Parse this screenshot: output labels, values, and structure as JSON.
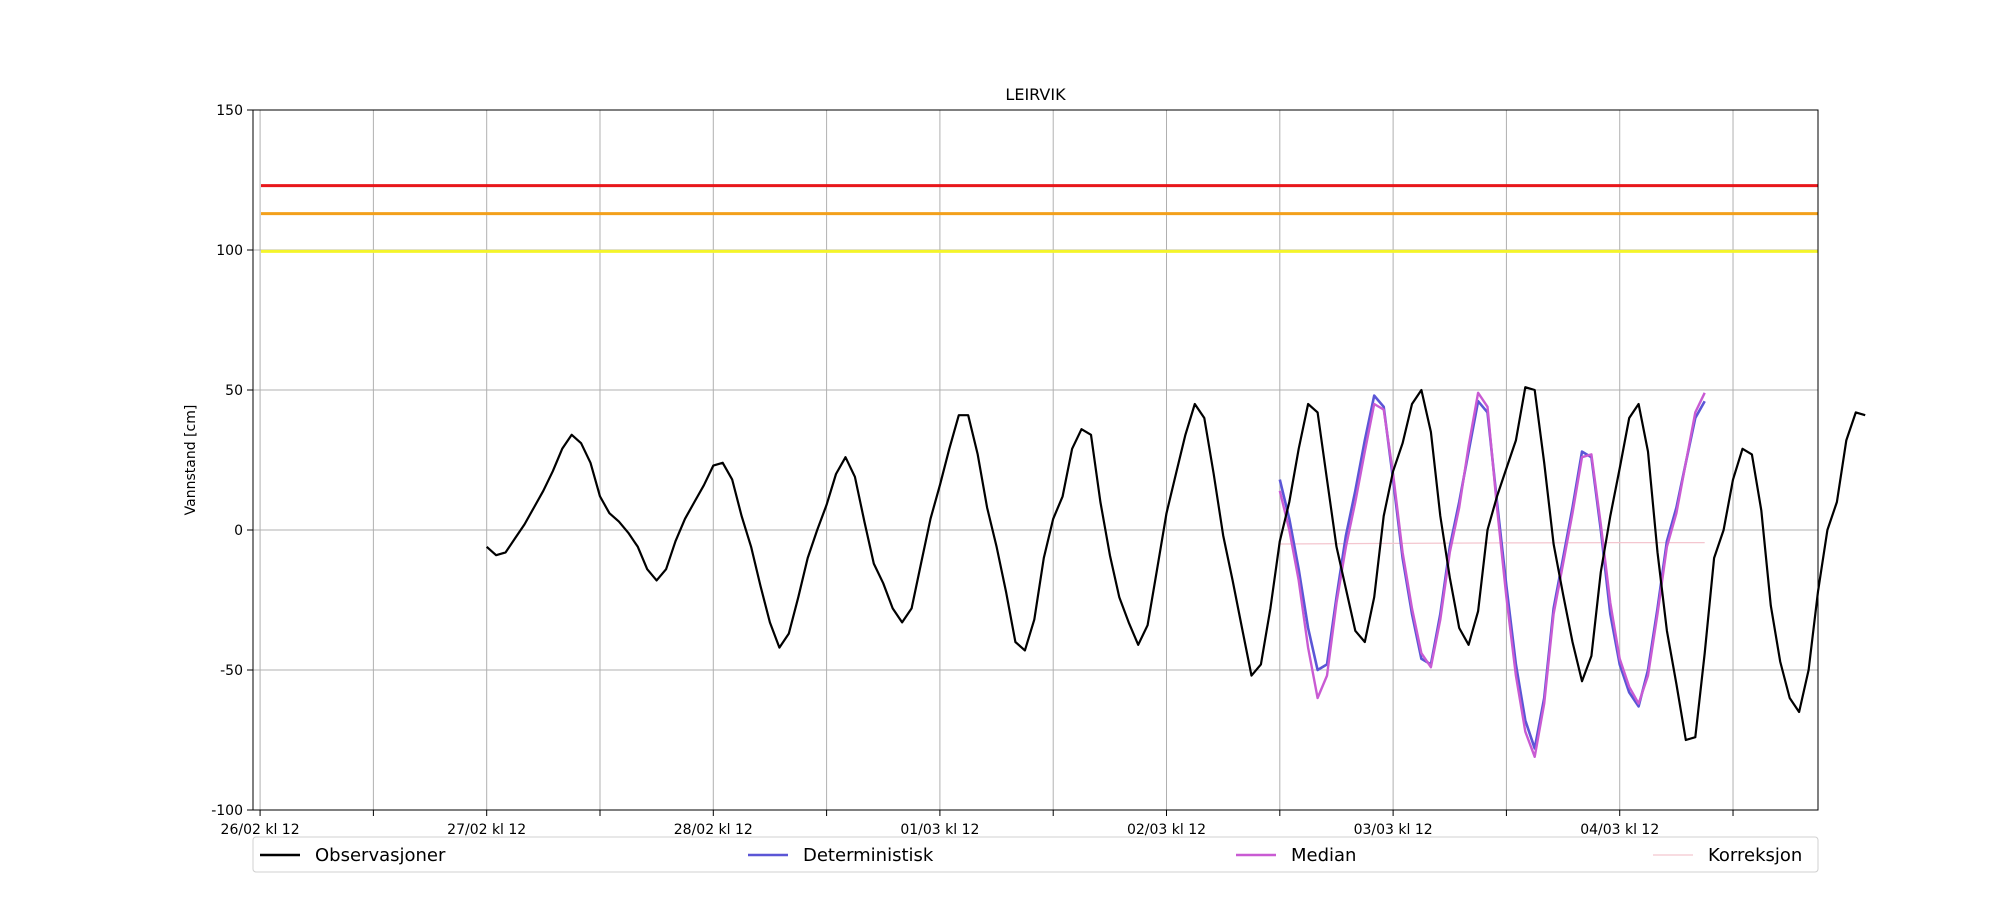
{
  "chart_data": {
    "type": "line",
    "title": "LEIRVIK",
    "xlabel": "",
    "ylabel": "Vannstand [cm]",
    "ylim": [
      -100,
      150
    ],
    "xlim": [
      "2025-02-26T11:15",
      "2025-03-05T09:00"
    ],
    "yticks": [
      -100,
      -50,
      0,
      50,
      100,
      150
    ],
    "xtick_labels": [
      {
        "t": "2025-02-26T12:00",
        "label": "26/02 kl 12"
      },
      {
        "t": "2025-02-27T12:00",
        "label": "27/02 kl 12"
      },
      {
        "t": "2025-02-28T12:00",
        "label": "28/02 kl 12"
      },
      {
        "t": "2025-03-01T12:00",
        "label": "01/03 kl 12"
      },
      {
        "t": "2025-03-02T12:00",
        "label": "02/03 kl 12"
      },
      {
        "t": "2025-03-03T12:00",
        "label": "03/03 kl 12"
      },
      {
        "t": "2025-03-04T12:00",
        "label": "04/03 kl 12"
      }
    ],
    "grid": true,
    "legend_position": "bottom",
    "thresholds": [
      {
        "value": 123,
        "color": "#e8171b"
      },
      {
        "value": 113,
        "color": "#f3a01b"
      },
      {
        "value": 99.5,
        "color": "#f4f42b"
      }
    ],
    "series": [
      {
        "name": "Observasjoner",
        "color": "#000000",
        "points": [
          [
            "2025-02-27T12:00",
            -6
          ],
          [
            "2025-02-27T13:00",
            -9
          ],
          [
            "2025-02-27T14:00",
            -8
          ],
          [
            "2025-02-27T15:00",
            -3
          ],
          [
            "2025-02-27T16:00",
            2
          ],
          [
            "2025-02-27T17:00",
            8
          ],
          [
            "2025-02-27T18:00",
            14
          ],
          [
            "2025-02-27T19:00",
            21
          ],
          [
            "2025-02-27T20:00",
            29
          ],
          [
            "2025-02-27T21:00",
            34
          ],
          [
            "2025-02-27T22:00",
            31
          ],
          [
            "2025-02-27T23:00",
            24
          ],
          [
            "2025-02-28T00:00",
            12
          ],
          [
            "2025-02-28T01:00",
            6
          ],
          [
            "2025-02-28T02:00",
            3
          ],
          [
            "2025-02-28T03:00",
            -1
          ],
          [
            "2025-02-28T04:00",
            -6
          ],
          [
            "2025-02-28T05:00",
            -14
          ],
          [
            "2025-02-28T06:00",
            -18
          ],
          [
            "2025-02-28T07:00",
            -14
          ],
          [
            "2025-02-28T08:00",
            -4
          ],
          [
            "2025-02-28T09:00",
            4
          ],
          [
            "2025-02-28T10:00",
            10
          ],
          [
            "2025-02-28T11:00",
            16
          ],
          [
            "2025-02-28T12:00",
            23
          ],
          [
            "2025-02-28T13:00",
            24
          ],
          [
            "2025-02-28T14:00",
            18
          ],
          [
            "2025-02-28T15:00",
            5
          ],
          [
            "2025-02-28T16:00",
            -6
          ],
          [
            "2025-02-28T17:00",
            -20
          ],
          [
            "2025-02-28T18:00",
            -33
          ],
          [
            "2025-02-28T19:00",
            -42
          ],
          [
            "2025-02-28T20:00",
            -37
          ],
          [
            "2025-02-28T21:00",
            -24
          ],
          [
            "2025-02-28T22:00",
            -10
          ],
          [
            "2025-02-28T23:00",
            0
          ],
          [
            "2025-03-01T00:00",
            9
          ],
          [
            "2025-03-01T01:00",
            20
          ],
          [
            "2025-03-01T02:00",
            26
          ],
          [
            "2025-03-01T03:00",
            19
          ],
          [
            "2025-03-01T04:00",
            3
          ],
          [
            "2025-03-01T05:00",
            -12
          ],
          [
            "2025-03-01T06:00",
            -19
          ],
          [
            "2025-03-01T07:00",
            -28
          ],
          [
            "2025-03-01T08:00",
            -33
          ],
          [
            "2025-03-01T09:00",
            -28
          ],
          [
            "2025-03-01T10:00",
            -12
          ],
          [
            "2025-03-01T11:00",
            4
          ],
          [
            "2025-03-01T12:00",
            16
          ],
          [
            "2025-03-01T13:00",
            29
          ],
          [
            "2025-03-01T14:00",
            41
          ],
          [
            "2025-03-01T15:00",
            41
          ],
          [
            "2025-03-01T16:00",
            27
          ],
          [
            "2025-03-01T17:00",
            8
          ],
          [
            "2025-03-01T18:00",
            -6
          ],
          [
            "2025-03-01T19:00",
            -22
          ],
          [
            "2025-03-01T20:00",
            -40
          ],
          [
            "2025-03-01T21:00",
            -43
          ],
          [
            "2025-03-01T22:00",
            -32
          ],
          [
            "2025-03-01T23:00",
            -10
          ],
          [
            "2025-03-02T00:00",
            4
          ],
          [
            "2025-03-02T01:00",
            12
          ],
          [
            "2025-03-02T02:00",
            29
          ],
          [
            "2025-03-02T03:00",
            36
          ],
          [
            "2025-03-02T04:00",
            34
          ],
          [
            "2025-03-02T05:00",
            10
          ],
          [
            "2025-03-02T06:00",
            -9
          ],
          [
            "2025-03-02T07:00",
            -24
          ],
          [
            "2025-03-02T08:00",
            -33
          ],
          [
            "2025-03-02T09:00",
            -41
          ],
          [
            "2025-03-02T10:00",
            -34
          ],
          [
            "2025-03-02T11:00",
            -14
          ],
          [
            "2025-03-02T12:00",
            6
          ],
          [
            "2025-03-02T13:00",
            20
          ],
          [
            "2025-03-02T14:00",
            34
          ],
          [
            "2025-03-02T15:00",
            45
          ],
          [
            "2025-03-02T16:00",
            40
          ],
          [
            "2025-03-02T17:00",
            20
          ],
          [
            "2025-03-02T18:00",
            -2
          ],
          [
            "2025-03-02T19:00",
            -18
          ],
          [
            "2025-03-02T20:00",
            -35
          ],
          [
            "2025-03-02T21:00",
            -52
          ],
          [
            "2025-03-02T22:00",
            -48
          ],
          [
            "2025-03-02T23:00",
            -28
          ],
          [
            "2025-03-03T00:00",
            -4
          ],
          [
            "2025-03-03T01:00",
            10
          ],
          [
            "2025-03-03T02:00",
            29
          ],
          [
            "2025-03-03T03:00",
            45
          ],
          [
            "2025-03-03T04:00",
            42
          ],
          [
            "2025-03-03T05:00",
            18
          ],
          [
            "2025-03-03T06:00",
            -6
          ],
          [
            "2025-03-03T07:00",
            -21
          ],
          [
            "2025-03-03T08:00",
            -36
          ],
          [
            "2025-03-03T09:00",
            -40
          ],
          [
            "2025-03-03T10:00",
            -24
          ],
          [
            "2025-03-03T11:00",
            5
          ],
          [
            "2025-03-03T12:00",
            21
          ],
          [
            "2025-03-03T13:00",
            31
          ],
          [
            "2025-03-03T14:00",
            45
          ],
          [
            "2025-03-03T15:00",
            50
          ],
          [
            "2025-03-03T16:00",
            35
          ],
          [
            "2025-03-03T17:00",
            5
          ],
          [
            "2025-03-03T18:00",
            -17
          ],
          [
            "2025-03-03T19:00",
            -35
          ],
          [
            "2025-03-03T20:00",
            -41
          ],
          [
            "2025-03-03T21:00",
            -29
          ],
          [
            "2025-03-03T22:00",
            0
          ],
          [
            "2025-03-03T23:00",
            12
          ],
          [
            "2025-03-04T00:00",
            22
          ],
          [
            "2025-03-04T01:00",
            32
          ],
          [
            "2025-03-04T02:00",
            51
          ],
          [
            "2025-03-04T03:00",
            50
          ],
          [
            "2025-03-04T04:00",
            24
          ],
          [
            "2025-03-04T05:00",
            -5
          ],
          [
            "2025-03-04T06:00",
            -23
          ],
          [
            "2025-03-04T07:00",
            -40
          ],
          [
            "2025-03-04T08:00",
            -54
          ],
          [
            "2025-03-04T09:00",
            -45
          ],
          [
            "2025-03-04T10:00",
            -15
          ],
          [
            "2025-03-04T11:00",
            5
          ],
          [
            "2025-03-04T12:00",
            22
          ],
          [
            "2025-03-04T13:00",
            40
          ],
          [
            "2025-03-04T14:00",
            45
          ],
          [
            "2025-03-04T15:00",
            28
          ],
          [
            "2025-03-04T16:00",
            -8
          ],
          [
            "2025-03-04T17:00",
            -36
          ],
          [
            "2025-03-04T18:00",
            -55
          ],
          [
            "2025-03-04T19:00",
            -75
          ],
          [
            "2025-03-04T20:00",
            -74
          ],
          [
            "2025-03-04T21:00",
            -44
          ],
          [
            "2025-03-04T22:00",
            -10
          ],
          [
            "2025-03-04T23:00",
            0
          ],
          [
            "2025-03-05T00:00",
            18
          ],
          [
            "2025-03-05T01:00",
            29
          ],
          [
            "2025-03-05T02:00",
            27
          ],
          [
            "2025-03-05T03:00",
            7
          ],
          [
            "2025-03-05T04:00",
            -27
          ],
          [
            "2025-03-05T05:00",
            -47
          ],
          [
            "2025-03-05T06:00",
            -60
          ],
          [
            "2025-03-05T07:00",
            -65
          ],
          [
            "2025-03-05T08:00",
            -50
          ],
          [
            "2025-03-05T09:00",
            -22
          ],
          [
            "2025-03-05T10:00",
            0
          ],
          [
            "2025-03-05T11:00",
            10
          ],
          [
            "2025-03-05T12:00",
            32
          ],
          [
            "2025-03-05T13:00",
            42
          ],
          [
            "2025-03-05T14:00",
            41
          ]
        ]
      },
      {
        "name": "Deterministisk",
        "color": "#5b56d6",
        "points": [
          [
            "2025-03-03T00:00",
            18
          ],
          [
            "2025-03-03T01:00",
            4
          ],
          [
            "2025-03-03T02:00",
            -14
          ],
          [
            "2025-03-03T03:00",
            -35
          ],
          [
            "2025-03-03T04:00",
            -50
          ],
          [
            "2025-03-03T05:00",
            -48
          ],
          [
            "2025-03-03T06:00",
            -24
          ],
          [
            "2025-03-03T07:00",
            -2
          ],
          [
            "2025-03-03T08:00",
            14
          ],
          [
            "2025-03-03T09:00",
            32
          ],
          [
            "2025-03-03T10:00",
            48
          ],
          [
            "2025-03-03T11:00",
            44
          ],
          [
            "2025-03-03T12:00",
            18
          ],
          [
            "2025-03-03T13:00",
            -10
          ],
          [
            "2025-03-03T14:00",
            -30
          ],
          [
            "2025-03-03T15:00",
            -46
          ],
          [
            "2025-03-03T16:00",
            -48
          ],
          [
            "2025-03-03T17:00",
            -30
          ],
          [
            "2025-03-03T18:00",
            -6
          ],
          [
            "2025-03-03T19:00",
            10
          ],
          [
            "2025-03-03T20:00",
            28
          ],
          [
            "2025-03-03T21:00",
            46
          ],
          [
            "2025-03-03T22:00",
            42
          ],
          [
            "2025-03-03T23:00",
            10
          ],
          [
            "2025-03-04T00:00",
            -20
          ],
          [
            "2025-03-04T01:00",
            -48
          ],
          [
            "2025-03-04T02:00",
            -68
          ],
          [
            "2025-03-04T03:00",
            -78
          ],
          [
            "2025-03-04T04:00",
            -60
          ],
          [
            "2025-03-04T05:00",
            -28
          ],
          [
            "2025-03-04T06:00",
            -10
          ],
          [
            "2025-03-04T07:00",
            8
          ],
          [
            "2025-03-04T08:00",
            28
          ],
          [
            "2025-03-04T09:00",
            26
          ],
          [
            "2025-03-04T10:00",
            0
          ],
          [
            "2025-03-04T11:00",
            -30
          ],
          [
            "2025-03-04T12:00",
            -48
          ],
          [
            "2025-03-04T13:00",
            -58
          ],
          [
            "2025-03-04T14:00",
            -63
          ],
          [
            "2025-03-04T15:00",
            -50
          ],
          [
            "2025-03-04T16:00",
            -28
          ],
          [
            "2025-03-04T17:00",
            -4
          ],
          [
            "2025-03-04T18:00",
            8
          ],
          [
            "2025-03-04T19:00",
            24
          ],
          [
            "2025-03-04T20:00",
            40
          ],
          [
            "2025-03-04T21:00",
            46
          ]
        ]
      },
      {
        "name": "Median",
        "color": "#c95bd3",
        "points": [
          [
            "2025-03-03T00:00",
            14
          ],
          [
            "2025-03-03T01:00",
            0
          ],
          [
            "2025-03-03T02:00",
            -18
          ],
          [
            "2025-03-03T03:00",
            -42
          ],
          [
            "2025-03-03T04:00",
            -60
          ],
          [
            "2025-03-03T05:00",
            -52
          ],
          [
            "2025-03-03T06:00",
            -26
          ],
          [
            "2025-03-03T07:00",
            -6
          ],
          [
            "2025-03-03T08:00",
            10
          ],
          [
            "2025-03-03T09:00",
            28
          ],
          [
            "2025-03-03T10:00",
            45
          ],
          [
            "2025-03-03T11:00",
            43
          ],
          [
            "2025-03-03T12:00",
            20
          ],
          [
            "2025-03-03T13:00",
            -8
          ],
          [
            "2025-03-03T14:00",
            -28
          ],
          [
            "2025-03-03T15:00",
            -44
          ],
          [
            "2025-03-03T16:00",
            -49
          ],
          [
            "2025-03-03T17:00",
            -32
          ],
          [
            "2025-03-03T18:00",
            -8
          ],
          [
            "2025-03-03T19:00",
            8
          ],
          [
            "2025-03-03T20:00",
            30
          ],
          [
            "2025-03-03T21:00",
            49
          ],
          [
            "2025-03-03T22:00",
            44
          ],
          [
            "2025-03-03T23:00",
            8
          ],
          [
            "2025-03-04T00:00",
            -24
          ],
          [
            "2025-03-04T01:00",
            -52
          ],
          [
            "2025-03-04T02:00",
            -72
          ],
          [
            "2025-03-04T03:00",
            -81
          ],
          [
            "2025-03-04T04:00",
            -62
          ],
          [
            "2025-03-04T05:00",
            -30
          ],
          [
            "2025-03-04T06:00",
            -12
          ],
          [
            "2025-03-04T07:00",
            6
          ],
          [
            "2025-03-04T08:00",
            26
          ],
          [
            "2025-03-04T09:00",
            27
          ],
          [
            "2025-03-04T10:00",
            2
          ],
          [
            "2025-03-04T11:00",
            -26
          ],
          [
            "2025-03-04T12:00",
            -46
          ],
          [
            "2025-03-04T13:00",
            -56
          ],
          [
            "2025-03-04T14:00",
            -62
          ],
          [
            "2025-03-04T15:00",
            -52
          ],
          [
            "2025-03-04T16:00",
            -30
          ],
          [
            "2025-03-04T17:00",
            -6
          ],
          [
            "2025-03-04T18:00",
            6
          ],
          [
            "2025-03-04T19:00",
            24
          ],
          [
            "2025-03-04T20:00",
            42
          ],
          [
            "2025-03-04T21:00",
            49
          ]
        ]
      },
      {
        "name": "Korreksjon",
        "color": "#f4c6cf",
        "points": [
          [
            "2025-03-03T00:00",
            -5
          ],
          [
            "2025-03-03T12:00",
            -4.8
          ],
          [
            "2025-03-04T00:00",
            -4.6
          ],
          [
            "2025-03-04T12:00",
            -4.5
          ],
          [
            "2025-03-04T21:00",
            -4.5
          ]
        ]
      }
    ]
  }
}
